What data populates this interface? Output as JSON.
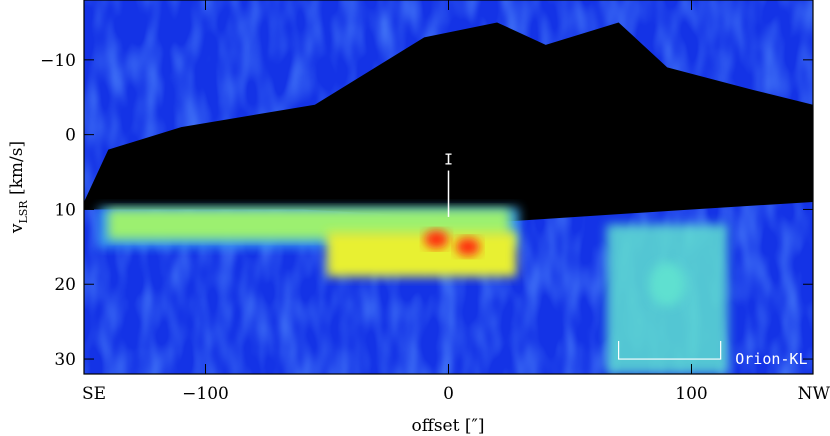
{
  "chart_data": {
    "type": "heatmap",
    "title": "",
    "xlabel": "offset [″]",
    "ylabel_main": "v",
    "ylabel_sub": "LSR",
    "ylabel_unit": " [km/s]",
    "xlim": [
      -150,
      150
    ],
    "ylim": [
      -18,
      32
    ],
    "y_inverted": true,
    "xticks": [
      -100,
      0,
      100
    ],
    "xtick_labels": [
      "−100",
      "0",
      "100"
    ],
    "yticks": [
      -10,
      0,
      10,
      20,
      30
    ],
    "ytick_labels": [
      "−10",
      "0",
      "10",
      "20",
      "30"
    ],
    "x_end_labels": {
      "left": "SE",
      "right": "NW"
    },
    "colormap": [
      "#000000",
      "#0a1fbf",
      "#1436f2",
      "#2f6bff",
      "#3aa7f0",
      "#5fe0d0",
      "#9cf070",
      "#e8f030",
      "#ff9a20",
      "#ff2a10"
    ],
    "features": [
      {
        "name": "absorption_dark_band",
        "x_range": [
          -150,
          150
        ],
        "v_range": [
          -12,
          10
        ],
        "value": 0
      },
      {
        "name": "bright_emission_ridge",
        "x_range": [
          -140,
          25
        ],
        "v_range": [
          10,
          14
        ],
        "peak_value": 0.7
      },
      {
        "name": "emission_knot",
        "x": -5,
        "v": 14,
        "value": 1.0
      },
      {
        "name": "emission_knot",
        "x": 8,
        "v": 15,
        "value": 1.0
      },
      {
        "name": "orion_kl_plume",
        "x_range": [
          65,
          115
        ],
        "v_range": [
          12,
          32
        ],
        "peak_value": 0.5
      }
    ],
    "annotations": [
      {
        "text": "I",
        "x": 0,
        "v": 4
      },
      {
        "text": "Orion-KL",
        "x": 118,
        "v": 30,
        "bracket_x": [
          70,
          112
        ]
      }
    ]
  }
}
